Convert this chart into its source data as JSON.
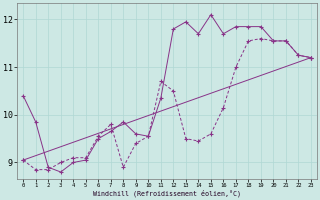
{
  "bg_color": "#cde8e4",
  "line_color": "#883388",
  "grid_color": "#b0d8d4",
  "xlabel": "Windchill (Refroidissement éolien,°C)",
  "xlim": [
    -0.5,
    23.5
  ],
  "ylim": [
    8.65,
    12.35
  ],
  "x_ticks": [
    0,
    1,
    2,
    3,
    4,
    5,
    6,
    7,
    8,
    9,
    10,
    11,
    12,
    13,
    14,
    15,
    16,
    17,
    18,
    19,
    20,
    21,
    22,
    23
  ],
  "y_ticks": [
    9,
    10,
    11,
    12
  ],
  "curve1_x": [
    0,
    1,
    2,
    3,
    4,
    5,
    6,
    7,
    8,
    9,
    10,
    11,
    12,
    13,
    14,
    15,
    16,
    17,
    18,
    19,
    20,
    21,
    22,
    23
  ],
  "curve1_y": [
    10.4,
    9.85,
    8.9,
    8.8,
    9.0,
    9.05,
    9.5,
    9.65,
    9.85,
    9.6,
    9.55,
    10.35,
    11.8,
    11.95,
    11.7,
    12.1,
    11.7,
    11.85,
    11.85,
    11.85,
    11.55,
    11.55,
    11.25,
    11.2
  ],
  "curve2_x": [
    0,
    1,
    2,
    3,
    4,
    5,
    6,
    7,
    8,
    9,
    10,
    11,
    12,
    13,
    14,
    15,
    16,
    17,
    18,
    19,
    20,
    21,
    22,
    23
  ],
  "curve2_y": [
    9.05,
    8.85,
    8.85,
    9.0,
    9.1,
    9.1,
    9.55,
    9.8,
    8.9,
    9.4,
    9.55,
    10.7,
    10.5,
    9.5,
    9.45,
    9.6,
    10.15,
    11.0,
    11.55,
    11.6,
    11.55,
    11.55,
    11.25,
    11.2
  ],
  "curve3_x": [
    0,
    23
  ],
  "curve3_y": [
    9.05,
    11.2
  ]
}
